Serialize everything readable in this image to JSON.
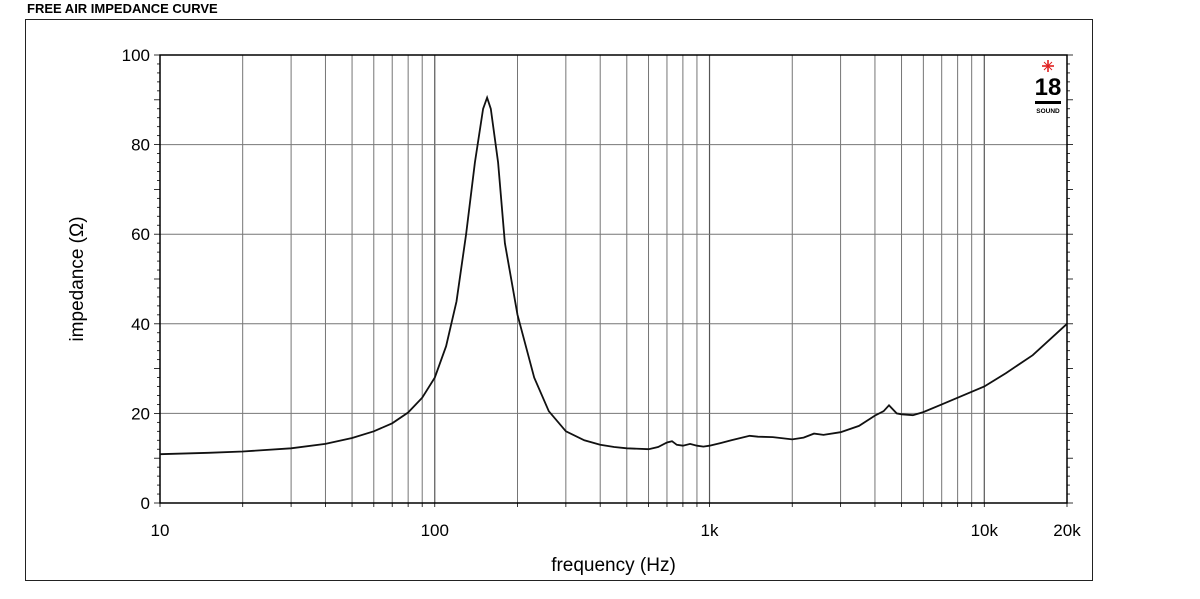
{
  "page_title": "FREE AIR IMPEDANCE CURVE",
  "logo": {
    "text": "18",
    "subtext": "SOUND",
    "star_color": "#e02020"
  },
  "chart_data": {
    "type": "line",
    "title": "",
    "xlabel": "frequency (Hz)",
    "ylabel": "impedance (Ω)",
    "x_scale": "log",
    "xlim": [
      10,
      20000
    ],
    "ylim": [
      0,
      100
    ],
    "grid": true,
    "x_tick_labels": [
      {
        "value": 10,
        "label": "10"
      },
      {
        "value": 100,
        "label": "100"
      },
      {
        "value": 1000,
        "label": "1k"
      },
      {
        "value": 10000,
        "label": "10k"
      },
      {
        "value": 20000,
        "label": "20k"
      }
    ],
    "y_ticks": [
      0,
      20,
      40,
      60,
      80,
      100
    ],
    "line_color": "#111111",
    "series": [
      {
        "x": [
          10,
          15,
          20,
          30,
          40,
          50,
          60,
          70,
          80,
          90,
          100,
          110,
          120,
          130,
          140,
          150,
          155,
          160,
          170,
          180,
          200,
          230,
          260,
          300,
          350,
          400,
          450,
          500,
          600,
          650,
          700,
          730,
          760,
          800,
          850,
          900,
          950,
          1000,
          1100,
          1200,
          1400,
          1500,
          1700,
          2000,
          2200,
          2400,
          2600,
          3000,
          3500,
          4000,
          4300,
          4500,
          4800,
          5000,
          5500,
          6000,
          7000,
          8000,
          10000,
          12000,
          15000,
          20000
        ],
        "y": [
          10.9,
          11.2,
          11.5,
          12.2,
          13.2,
          14.5,
          16,
          17.8,
          20.2,
          23.5,
          28,
          35,
          45,
          60,
          76,
          88,
          90.5,
          88,
          76,
          58,
          42,
          28,
          20.5,
          16,
          14,
          13,
          12.5,
          12.2,
          12,
          12.5,
          13.5,
          13.8,
          13,
          12.8,
          13.2,
          12.8,
          12.6,
          12.8,
          13.4,
          14,
          15,
          14.8,
          14.7,
          14.2,
          14.6,
          15.5,
          15.2,
          15.8,
          17.2,
          19.5,
          20.5,
          21.8,
          20,
          19.8,
          19.6,
          20.3,
          22,
          23.5,
          26,
          29,
          33,
          40
        ]
      }
    ]
  }
}
